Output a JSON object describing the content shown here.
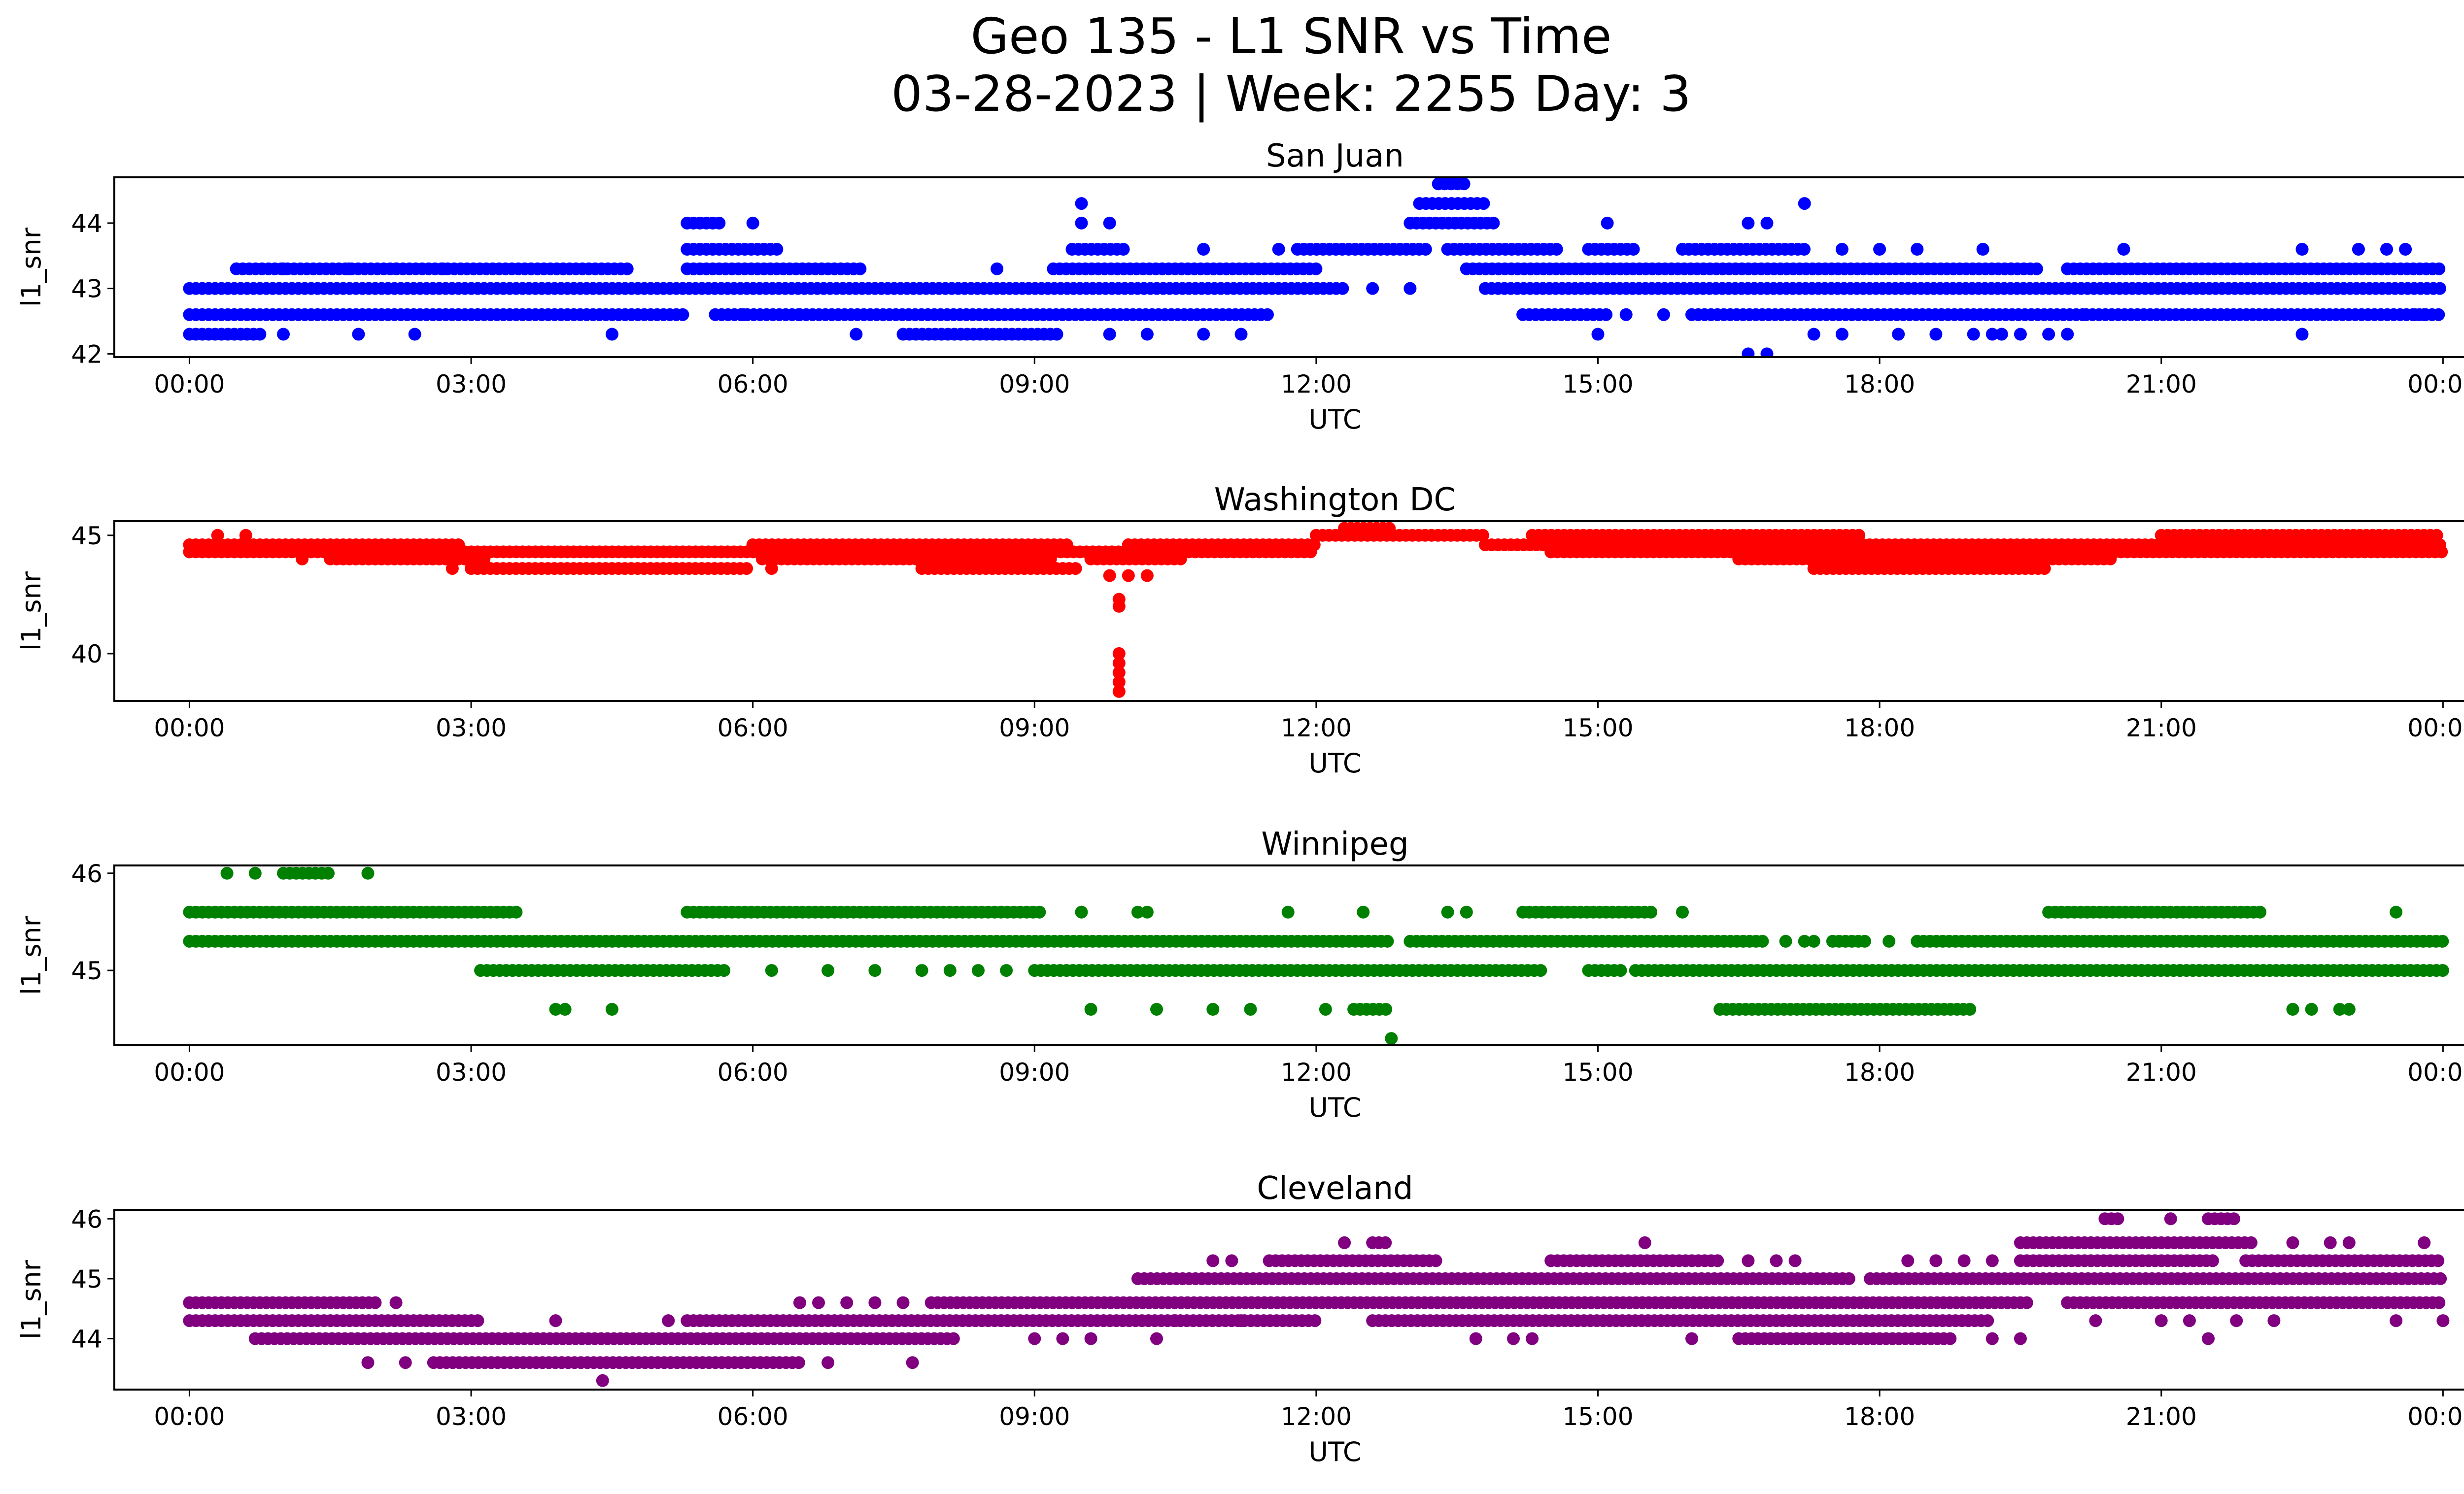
{
  "title_line1": "Geo 135 - L1 SNR vs Time",
  "title_line2": "03-28-2023 | Week: 2255 Day: 3",
  "chart_data": [
    {
      "type": "scatter",
      "title": "San Juan",
      "xlabel": "UTC",
      "ylabel": "l1_snr",
      "color": "#0000ff",
      "xlim": [
        -0.8,
        25.2
      ],
      "ylim": [
        41.95,
        44.7
      ],
      "x_ticks": [
        "00:00",
        "03:00",
        "06:00",
        "09:00",
        "12:00",
        "15:00",
        "18:00",
        "21:00",
        "00:00"
      ],
      "y_ticks": [
        42,
        43,
        44
      ],
      "bands": [
        {
          "y": 42.3,
          "segments": [
            [
              0.0,
              0.8
            ],
            [
              7.6,
              9.3
            ]
          ],
          "scattered": [
            1.0,
            1.8,
            2.4,
            4.5,
            7.1,
            9.8,
            10.2,
            10.8,
            11.2,
            15.0,
            17.3,
            17.6,
            18.2,
            18.6,
            19.0,
            19.2,
            19.3,
            19.5,
            19.8,
            20.0,
            22.5
          ]
        },
        {
          "y": 42.6,
          "segments": [
            [
              0.0,
              5.3
            ],
            [
              5.6,
              6.5
            ],
            [
              6.5,
              11.5
            ],
            [
              14.2,
              15.1
            ],
            [
              16.0,
              20.2
            ],
            [
              20.2,
              24.0
            ]
          ],
          "scattered": [
            5.9,
            15.3,
            15.7,
            23.7,
            23.8
          ]
        },
        {
          "y": 43.0,
          "segments": [
            [
              0.0,
              12.3
            ],
            [
              13.8,
              24.0
            ]
          ],
          "scattered": [
            12.6,
            13.0
          ]
        },
        {
          "y": 43.3,
          "segments": [
            [
              0.5,
              4.7
            ],
            [
              5.3,
              7.2
            ],
            [
              9.2,
              12.0
            ],
            [
              13.6,
              19.7
            ],
            [
              20.0,
              24.0
            ]
          ],
          "scattered": [
            0.5,
            1.0,
            1.7,
            2.2,
            2.7,
            8.6,
            19.4
          ]
        },
        {
          "y": 43.6,
          "segments": [
            [
              5.3,
              6.3
            ],
            [
              9.4,
              10.0
            ],
            [
              11.8,
              13.2
            ],
            [
              13.4,
              14.6
            ],
            [
              14.9,
              15.4
            ],
            [
              15.9,
              17.2
            ]
          ],
          "scattered": [
            10.8,
            11.6,
            17.6,
            18.0,
            18.4,
            19.1,
            20.6,
            22.5,
            23.1,
            23.4,
            23.6
          ]
        },
        {
          "y": 44.0,
          "segments": [
            [
              5.3,
              5.7
            ],
            [
              13.0,
              13.9
            ]
          ],
          "scattered": [
            6.0,
            9.5,
            9.8,
            15.1,
            16.6,
            16.8
          ]
        },
        {
          "y": 44.3,
          "segments": [
            [
              13.1,
              13.8
            ]
          ],
          "scattered": [
            9.5,
            17.2
          ]
        },
        {
          "y": 44.6,
          "segments": [
            [
              13.3,
              13.6
            ]
          ],
          "scattered": []
        },
        {
          "y": 42.0,
          "segments": [],
          "scattered": [
            16.6,
            16.8
          ]
        }
      ]
    },
    {
      "type": "scatter",
      "title": "Washington DC",
      "xlabel": "UTC",
      "ylabel": "l1_snr",
      "color": "#ff0000",
      "xlim": [
        -0.8,
        25.2
      ],
      "ylim": [
        38.0,
        45.6
      ],
      "x_ticks": [
        "00:00",
        "03:00",
        "06:00",
        "09:00",
        "12:00",
        "15:00",
        "18:00",
        "21:00",
        "00:00"
      ],
      "y_ticks": [
        40,
        45
      ],
      "bands": [
        {
          "y": 44.6,
          "segments": [
            [
              0.0,
              2.9
            ],
            [
              6.0,
              9.4
            ],
            [
              10.0,
              12.0
            ],
            [
              13.8,
              24.0
            ]
          ],
          "scattered": []
        },
        {
          "y": 44.3,
          "segments": [
            [
              0.0,
              12.0
            ],
            [
              14.5,
              24.0
            ]
          ],
          "scattered": []
        },
        {
          "y": 44.0,
          "segments": [
            [
              1.5,
              3.2
            ],
            [
              6.1,
              9.2
            ],
            [
              9.6,
              10.6
            ],
            [
              16.5,
              20.5
            ]
          ],
          "scattered": [
            1.2
          ]
        },
        {
          "y": 43.6,
          "segments": [
            [
              3.0,
              6.0
            ],
            [
              7.8,
              9.5
            ],
            [
              17.3,
              19.8
            ]
          ],
          "scattered": [
            2.8,
            6.2
          ]
        },
        {
          "y": 45.0,
          "segments": [
            [
              12.0,
              13.8
            ],
            [
              14.3,
              17.8
            ],
            [
              21.0,
              24.0
            ]
          ],
          "scattered": [
            0.3,
            0.6
          ]
        },
        {
          "y": 45.3,
          "segments": [
            [
              12.3,
              12.8
            ]
          ],
          "scattered": []
        },
        {
          "y": 43.3,
          "segments": [],
          "scattered": [
            9.8,
            10.0,
            10.2
          ]
        },
        {
          "y": 42.3,
          "segments": [],
          "scattered": [
            9.9
          ]
        },
        {
          "y": 42.0,
          "segments": [],
          "scattered": [
            9.9
          ]
        },
        {
          "y": 40.0,
          "segments": [],
          "scattered": [
            9.9
          ]
        },
        {
          "y": 39.6,
          "segments": [],
          "scattered": [
            9.9
          ]
        },
        {
          "y": 39.2,
          "segments": [],
          "scattered": [
            9.9
          ]
        },
        {
          "y": 38.8,
          "segments": [],
          "scattered": [
            9.9
          ]
        },
        {
          "y": 38.4,
          "segments": [],
          "scattered": [
            9.9
          ]
        }
      ]
    },
    {
      "type": "scatter",
      "title": "Winnipeg",
      "xlabel": "UTC",
      "ylabel": "l1_snr",
      "color": "#008000",
      "xlim": [
        -0.8,
        25.2
      ],
      "ylim": [
        44.23,
        46.08
      ],
      "x_ticks": [
        "00:00",
        "03:00",
        "06:00",
        "09:00",
        "12:00",
        "15:00",
        "18:00",
        "21:00",
        "00:00"
      ],
      "y_ticks": [
        45,
        46
      ],
      "bands": [
        {
          "y": 46.0,
          "segments": [
            [
              1.0,
              1.5
            ]
          ],
          "scattered": [
            0.4,
            0.7,
            1.9
          ]
        },
        {
          "y": 45.6,
          "segments": [
            [
              0.0,
              3.5
            ],
            [
              5.3,
              9.1
            ],
            [
              14.2,
              15.6
            ],
            [
              19.8,
              22.1
            ]
          ],
          "scattered": [
            9.5,
            10.1,
            10.2,
            11.7,
            12.5,
            13.4,
            13.6,
            15.9,
            23.5
          ]
        },
        {
          "y": 45.3,
          "segments": [
            [
              0.0,
              12.8
            ],
            [
              13.0,
              16.8
            ],
            [
              17.5,
              17.9
            ],
            [
              18.4,
              24.0
            ]
          ],
          "scattered": [
            17.0,
            17.2,
            17.3,
            18.1
          ]
        },
        {
          "y": 45.0,
          "segments": [
            [
              3.1,
              5.7
            ],
            [
              9.0,
              14.4
            ],
            [
              14.9,
              15.3
            ],
            [
              15.4,
              21.2
            ],
            [
              21.2,
              24.0
            ]
          ],
          "scattered": [
            6.2,
            6.8,
            7.3,
            7.8,
            8.1,
            8.4,
            8.7
          ]
        },
        {
          "y": 44.6,
          "segments": [
            [
              16.3,
              19.0
            ],
            [
              12.4,
              12.8
            ]
          ],
          "scattered": [
            3.9,
            4.0,
            4.5,
            9.6,
            10.3,
            10.9,
            11.3,
            12.1,
            22.4,
            22.6,
            22.9,
            23.0
          ]
        },
        {
          "y": 44.3,
          "segments": [],
          "scattered": [
            12.8
          ]
        }
      ]
    },
    {
      "type": "scatter",
      "title": "Cleveland",
      "xlabel": "UTC",
      "ylabel": "l1_snr",
      "color": "#800080",
      "xlim": [
        -0.8,
        25.2
      ],
      "ylim": [
        43.15,
        46.15
      ],
      "x_ticks": [
        "00:00",
        "03:00",
        "06:00",
        "09:00",
        "12:00",
        "15:00",
        "18:00",
        "21:00",
        "00:00"
      ],
      "y_ticks": [
        44,
        45,
        46
      ],
      "bands": [
        {
          "y": 46.0,
          "segments": [
            [
              20.4,
              20.6
            ],
            [
              21.5,
              21.8
            ]
          ],
          "scattered": [
            21.1
          ]
        },
        {
          "y": 45.6,
          "segments": [
            [
              12.6,
              12.8
            ],
            [
              19.5,
              22.0
            ]
          ],
          "scattered": [
            12.3,
            15.5,
            22.4,
            22.8,
            23.0,
            23.8
          ]
        },
        {
          "y": 45.3,
          "segments": [
            [
              11.5,
              13.3
            ],
            [
              14.5,
              16.3
            ],
            [
              19.5,
              21.6
            ],
            [
              21.9,
              24.0
            ]
          ],
          "scattered": [
            10.9,
            11.1,
            16.6,
            16.9,
            17.1,
            18.3,
            18.6,
            18.9,
            19.2
          ]
        },
        {
          "y": 45.0,
          "segments": [
            [
              10.1,
              17.7
            ],
            [
              17.9,
              24.0
            ]
          ],
          "scattered": []
        },
        {
          "y": 44.6,
          "segments": [
            [
              0.0,
              2.0
            ],
            [
              7.9,
              19.6
            ],
            [
              20.0,
              24.0
            ]
          ],
          "scattered": [
            2.2,
            6.5,
            6.7,
            7.0,
            7.3,
            7.6
          ]
        },
        {
          "y": 44.3,
          "segments": [
            [
              0.0,
              3.1
            ],
            [
              5.3,
              12.0
            ],
            [
              12.6,
              19.2
            ]
          ],
          "scattered": [
            3.9,
            5.1,
            10.5,
            11.2,
            20.3,
            21.0,
            21.3,
            21.8,
            22.2,
            23.5,
            24.0
          ]
        },
        {
          "y": 44.0,
          "segments": [
            [
              0.7,
              8.2
            ],
            [
              16.5,
              18.8
            ]
          ],
          "scattered": [
            9.0,
            9.3,
            9.6,
            10.3,
            13.7,
            14.1,
            14.3,
            16.0,
            19.2,
            19.5,
            21.5
          ]
        },
        {
          "y": 43.6,
          "segments": [
            [
              2.6,
              6.5
            ]
          ],
          "scattered": [
            1.9,
            2.3,
            6.8,
            7.7
          ]
        },
        {
          "y": 43.3,
          "segments": [],
          "scattered": [
            4.4
          ]
        }
      ]
    }
  ]
}
